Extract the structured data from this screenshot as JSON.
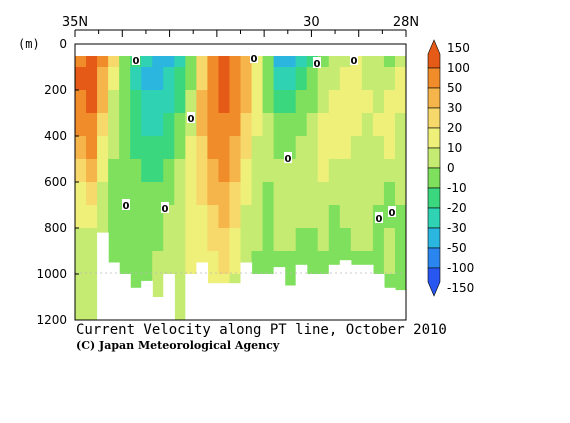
{
  "chart_data": {
    "type": "heatmap",
    "title": "Current Velocity along PT line, October 2010",
    "credit": "(C) Japan Meteorological Agency",
    "unit_label": "(m)",
    "x_tick_labels": [
      {
        "label": "35N",
        "lat": 35
      },
      {
        "label": "30",
        "lat": 30
      },
      {
        "label": "28N",
        "lat": 28
      }
    ],
    "xlim": [
      35,
      28
    ],
    "ylim": [
      0,
      1200
    ],
    "y_ticks": [
      0,
      200,
      400,
      600,
      800,
      1000,
      1200
    ],
    "zero_contour_label": "0",
    "colorbar": {
      "labels": [
        "150",
        "100",
        "50",
        "30",
        "20",
        "10",
        "0",
        "-10",
        "-20",
        "-30",
        "-50",
        "-100",
        "-150"
      ],
      "colors": [
        "#e65a17",
        "#f08c2a",
        "#f6b54a",
        "#f7d86a",
        "#eef07a",
        "#c6eb72",
        "#7fe05d",
        "#3ad77f",
        "#2fd3b3",
        "#2bb6e0",
        "#2a86ee",
        "#2756f0"
      ]
    },
    "field_rows": [
      [
        90,
        140,
        60,
        20,
        -5,
        -20,
        -30,
        -40,
        -35,
        -25,
        -10,
        20,
        60,
        150,
        90,
        40,
        15,
        -10,
        -40,
        -50,
        -30,
        -15,
        -5,
        0,
        5,
        10,
        5,
        0,
        -5,
        5
      ],
      [
        110,
        120,
        40,
        10,
        -10,
        -25,
        -35,
        -35,
        -30,
        -20,
        -5,
        25,
        70,
        130,
        80,
        30,
        10,
        -10,
        -30,
        -30,
        -20,
        -10,
        0,
        5,
        10,
        10,
        5,
        0,
        5,
        10
      ],
      [
        80,
        100,
        30,
        5,
        -10,
        -20,
        -30,
        -30,
        -25,
        -15,
        0,
        30,
        70,
        110,
        70,
        30,
        10,
        -5,
        -20,
        -20,
        -10,
        -5,
        5,
        10,
        10,
        15,
        10,
        5,
        10,
        10
      ],
      [
        60,
        70,
        20,
        0,
        -10,
        -15,
        -25,
        -25,
        -20,
        -10,
        5,
        30,
        60,
        90,
        60,
        25,
        10,
        0,
        -10,
        -10,
        -5,
        0,
        10,
        10,
        15,
        10,
        5,
        10,
        10,
        5
      ],
      [
        40,
        50,
        15,
        0,
        -10,
        -15,
        -20,
        -20,
        -15,
        -5,
        10,
        25,
        50,
        70,
        45,
        20,
        5,
        0,
        -5,
        -5,
        0,
        5,
        10,
        10,
        10,
        5,
        5,
        5,
        10,
        5
      ],
      [
        25,
        35,
        10,
        -5,
        -10,
        -10,
        -15,
        -15,
        -10,
        0,
        10,
        20,
        40,
        50,
        35,
        15,
        5,
        0,
        0,
        0,
        5,
        5,
        10,
        5,
        5,
        5,
        0,
        5,
        5,
        0
      ],
      [
        15,
        20,
        5,
        -5,
        -10,
        -10,
        -10,
        -10,
        -5,
        0,
        10,
        20,
        30,
        40,
        25,
        10,
        5,
        -5,
        0,
        5,
        5,
        5,
        5,
        0,
        0,
        5,
        5,
        0,
        -5,
        0
      ],
      [
        10,
        10,
        0,
        -5,
        -10,
        -10,
        -10,
        -5,
        0,
        5,
        10,
        15,
        25,
        30,
        20,
        5,
        0,
        -5,
        5,
        5,
        0,
        0,
        0,
        -5,
        0,
        5,
        0,
        -5,
        -5,
        -5
      ],
      [
        5,
        5,
        0,
        -5,
        -5,
        -10,
        -5,
        -5,
        0,
        5,
        10,
        15,
        20,
        25,
        15,
        5,
        0,
        -5,
        0,
        0,
        -5,
        -5,
        0,
        -5,
        -5,
        0,
        0,
        -5,
        0,
        -5
      ],
      [
        5,
        5,
        -5,
        -5,
        -5,
        -5,
        -5,
        0,
        5,
        5,
        10,
        10,
        15,
        20,
        10,
        0,
        -5,
        -10,
        -5,
        -5,
        -5,
        -5,
        -5,
        -10,
        -5,
        -5,
        -5,
        -5,
        0,
        -5
      ],
      [
        0,
        0,
        -5,
        -10,
        -10,
        -10,
        -5,
        0,
        5,
        5,
        5,
        10,
        10,
        15,
        5,
        0,
        -5,
        -10,
        -5,
        -10,
        -10,
        -5,
        -10,
        -10,
        -5,
        -10,
        -5,
        -5,
        -5,
        -5
      ],
      [
        0,
        0,
        -5,
        -10,
        -15,
        -10,
        -5,
        0,
        5,
        5,
        5,
        5,
        5,
        10,
        5,
        0,
        -5,
        -5,
        -10,
        -10,
        -10,
        -10,
        -5,
        -10,
        -10,
        -5,
        -5,
        -10,
        -5,
        -5
      ]
    ],
    "field_depths": [
      0,
      100,
      200,
      300,
      400,
      500,
      600,
      700,
      800,
      900,
      1000,
      1100
    ],
    "bottom_depths": [
      1200,
      1200,
      820,
      950,
      1000,
      1060,
      1030,
      1100,
      1000,
      1200,
      1000,
      950,
      1040,
      1040,
      1040,
      950,
      1000,
      1000,
      970,
      1050,
      960,
      1000,
      1000,
      960,
      940,
      960,
      960,
      1000,
      1060,
      1070
    ]
  }
}
